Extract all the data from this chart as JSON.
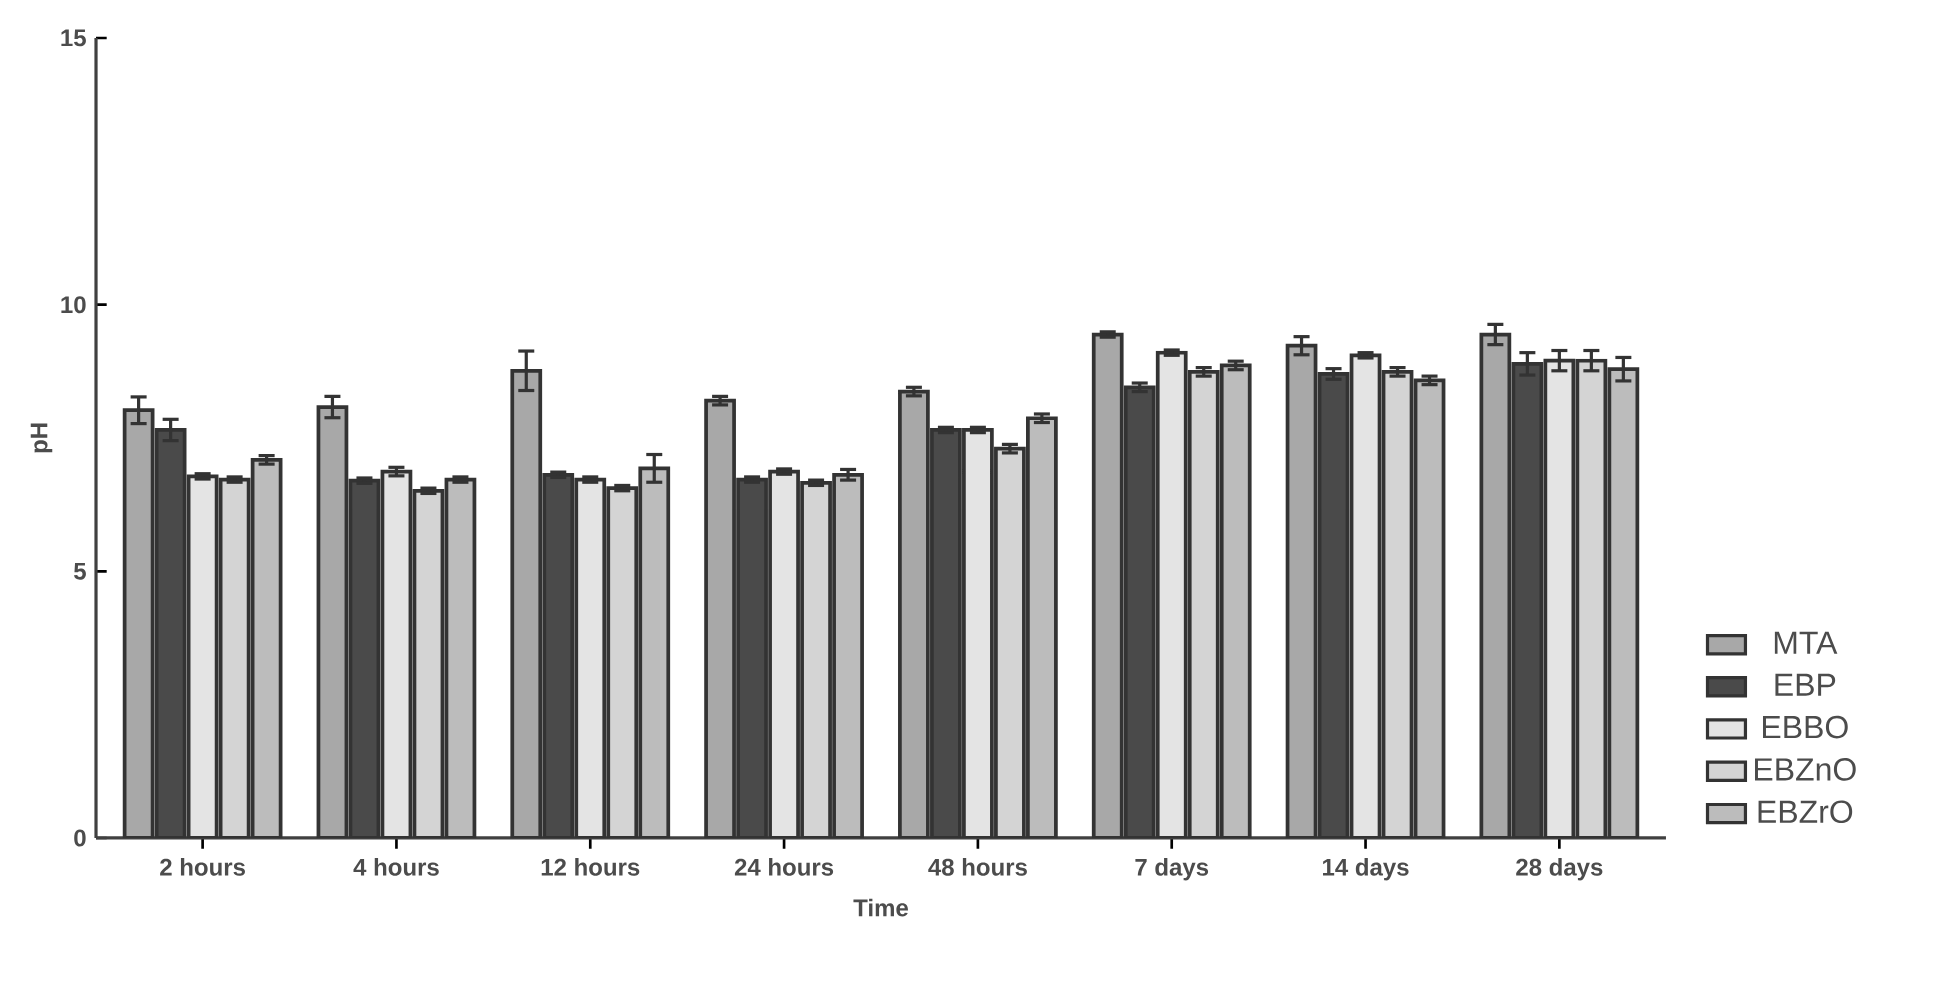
{
  "chart_data": {
    "type": "bar",
    "xlabel": "Time",
    "ylabel": "pH",
    "categories": [
      "2 hours",
      "4 hours",
      "12 hours",
      "24 hours",
      "48 hours",
      "7 days",
      "14 days",
      "28 days"
    ],
    "series": [
      {
        "name": "MTA",
        "color": "#a8a8a8",
        "values": [
          8.02,
          8.08,
          8.76,
          8.2,
          8.37,
          9.44,
          9.23,
          9.44
        ],
        "errors": [
          0.25,
          0.2,
          0.37,
          0.08,
          0.08,
          0.05,
          0.17,
          0.19
        ]
      },
      {
        "name": "EBP",
        "color": "#4a4a4a",
        "values": [
          7.65,
          6.7,
          6.81,
          6.72,
          7.65,
          8.45,
          8.7,
          8.89
        ],
        "errors": [
          0.2,
          0.05,
          0.05,
          0.05,
          0.05,
          0.08,
          0.1,
          0.21
        ]
      },
      {
        "name": "EBBO",
        "color": "#e4e4e4",
        "values": [
          6.78,
          6.87,
          6.72,
          6.87,
          7.65,
          9.1,
          9.05,
          8.95
        ],
        "errors": [
          0.05,
          0.08,
          0.05,
          0.05,
          0.05,
          0.05,
          0.05,
          0.19
        ]
      },
      {
        "name": "EBZnO",
        "color": "#d4d4d4",
        "values": [
          6.72,
          6.51,
          6.56,
          6.66,
          7.3,
          8.74,
          8.74,
          8.95
        ],
        "errors": [
          0.05,
          0.05,
          0.05,
          0.05,
          0.08,
          0.08,
          0.08,
          0.19
        ]
      },
      {
        "name": "EBZrO",
        "color": "#bcbcbc",
        "values": [
          7.09,
          6.72,
          6.93,
          6.81,
          7.87,
          8.86,
          8.58,
          8.79
        ],
        "errors": [
          0.08,
          0.05,
          0.26,
          0.1,
          0.08,
          0.08,
          0.08,
          0.22
        ]
      }
    ],
    "ylim": [
      0,
      15
    ],
    "yticks": [
      0,
      5,
      10,
      15
    ],
    "grid": false,
    "legend": "bottom right"
  }
}
